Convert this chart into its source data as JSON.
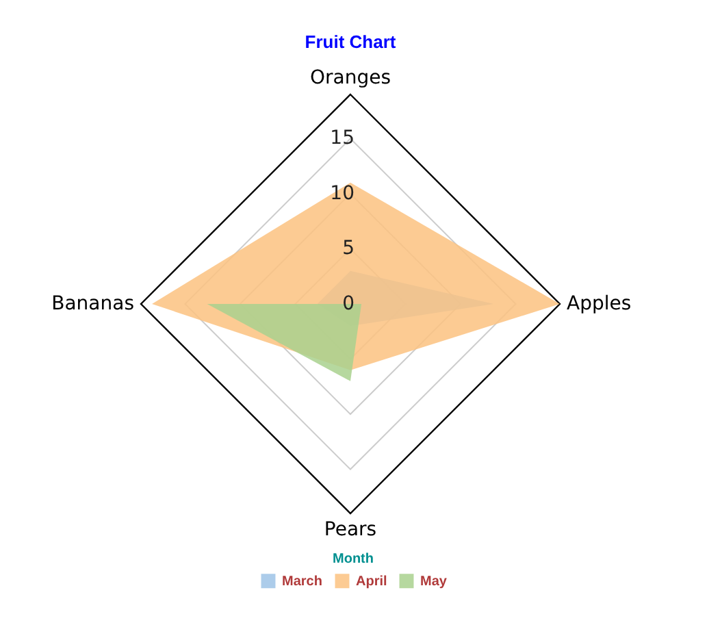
{
  "chart_data": {
    "type": "radar",
    "title": "Fruit Chart",
    "legend_title": "Month",
    "categories": [
      "Oranges",
      "Apples",
      "Pears",
      "Bananas"
    ],
    "series": [
      {
        "name": "March",
        "color": "#9dc3e6",
        "values": [
          3,
          13,
          2,
          3
        ]
      },
      {
        "name": "April",
        "color": "#fcc280",
        "values": [
          11,
          19,
          6,
          18
        ]
      },
      {
        "name": "May",
        "color": "#a9d18e",
        "values": [
          0,
          1,
          7,
          13
        ]
      }
    ],
    "ylim": [
      0,
      19
    ],
    "yticks": [
      0,
      5,
      10,
      15
    ],
    "grid": true,
    "legend": "bottom"
  }
}
